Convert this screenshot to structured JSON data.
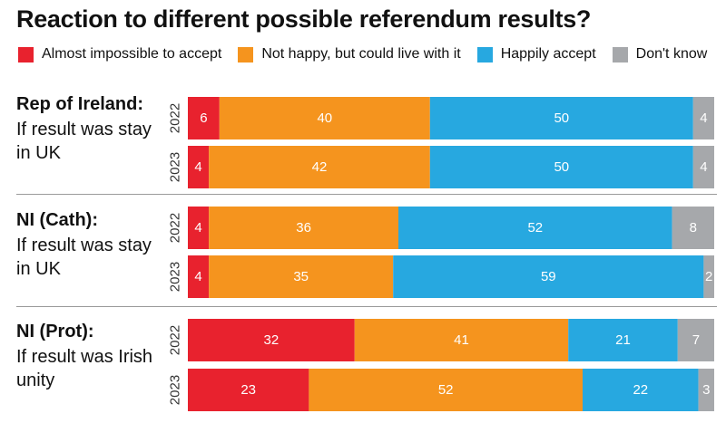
{
  "chart_data": {
    "type": "bar",
    "stacked": true,
    "orientation": "horizontal",
    "title": "Reaction to different possible referendum results?",
    "legend": {
      "placement": "top",
      "entries": [
        {
          "name": "Almost impossible to accept",
          "color": "#e8222e"
        },
        {
          "name": "Not happy, but could live with it",
          "color": "#f5941e"
        },
        {
          "name": "Happily accept",
          "color": "#27a8e0"
        },
        {
          "name": "Don't know",
          "color": "#a6a8ab"
        }
      ]
    },
    "groups": [
      {
        "title": "Rep of Ireland:",
        "subtitle": "If result was stay in UK",
        "bars": [
          {
            "year": "2022",
            "values": [
              6,
              40,
              50,
              4
            ]
          },
          {
            "year": "2023",
            "values": [
              4,
              42,
              50,
              4
            ]
          }
        ]
      },
      {
        "title": "NI (Cath):",
        "subtitle": "If result was stay in UK",
        "bars": [
          {
            "year": "2022",
            "values": [
              4,
              36,
              52,
              8
            ]
          },
          {
            "year": "2023",
            "values": [
              4,
              35,
              59,
              2
            ]
          }
        ]
      },
      {
        "title": "NI (Prot):",
        "subtitle": "If result was Irish unity",
        "bars": [
          {
            "year": "2022",
            "values": [
              32,
              41,
              21,
              7
            ]
          },
          {
            "year": "2023",
            "values": [
              23,
              52,
              22,
              3
            ]
          }
        ]
      }
    ]
  }
}
